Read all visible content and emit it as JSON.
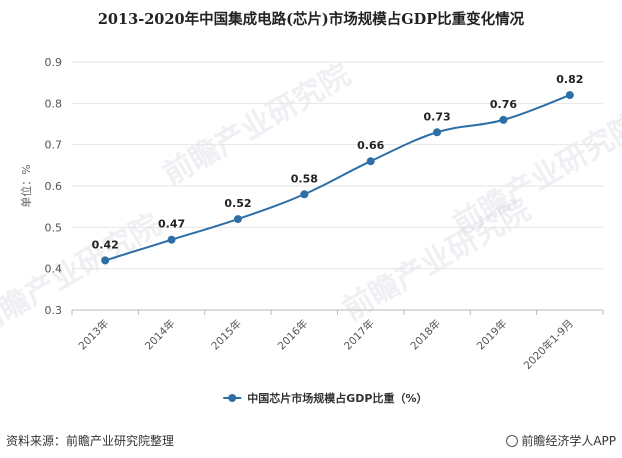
{
  "title": "2013-2020年中国集成电路(芯片)市场规模占GDP比重变化情况",
  "watermark": "前瞻产业研究院",
  "footer": {
    "source": "资料来源：前瞻产业研究院整理",
    "brand": "前瞻经济学人APP"
  },
  "colors": {
    "series": "#2e6ea6",
    "grid": "#e6e6e6"
  },
  "chart_data": {
    "type": "line",
    "title": "2013-2020年中国集成电路(芯片)市场规模占GDP比重变化情况",
    "categories": [
      "2013年",
      "2014年",
      "2015年",
      "2016年",
      "2017年",
      "2018年",
      "2019年",
      "2020年1-9月"
    ],
    "series": [
      {
        "name": "中国芯片市场规模占GDP比重（%）",
        "values": [
          0.42,
          0.47,
          0.52,
          0.58,
          0.66,
          0.73,
          0.76,
          0.82
        ]
      }
    ],
    "ylabel": "单位：%",
    "ylim": [
      0.3,
      0.9
    ],
    "yticks": [
      0.3,
      0.4,
      0.5,
      0.6,
      0.7,
      0.8,
      0.9
    ],
    "grid": true,
    "legend": "bottom",
    "data_labels": true
  }
}
